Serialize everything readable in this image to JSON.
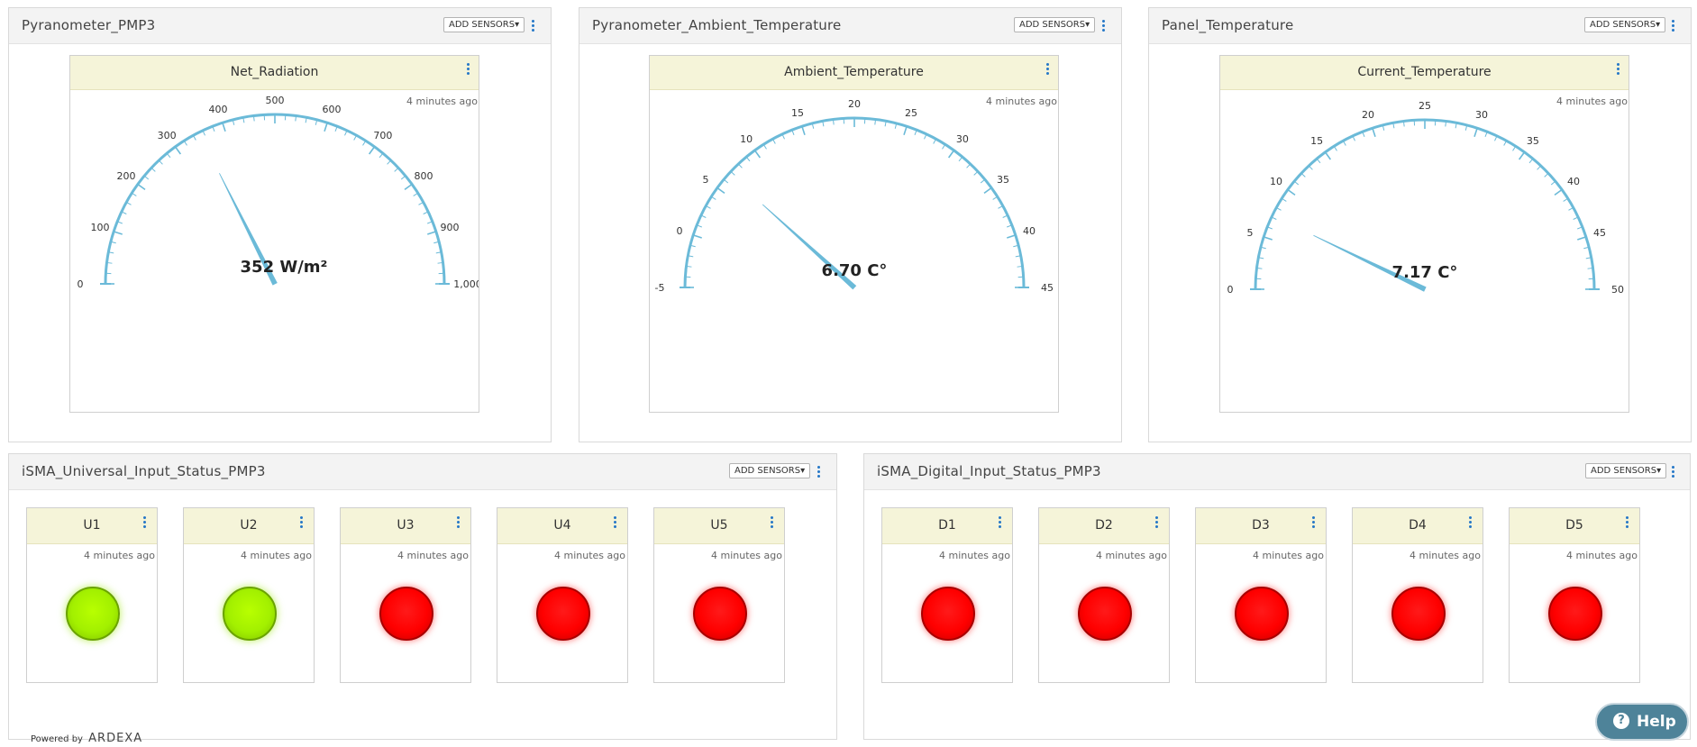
{
  "add_sensors_label": "ADD SENSORS",
  "gauge_panels": [
    {
      "title": "Pyranometer_PMP3",
      "card_title": "Net_Radiation",
      "updated": "4 minutes ago",
      "value_label": "352 W/m²",
      "gauge": {
        "min": 0,
        "max": 1000,
        "value": 352,
        "ticks": [
          "0",
          "100",
          "200",
          "300",
          "400",
          "500",
          "600",
          "700",
          "800",
          "900",
          "1,000"
        ]
      }
    },
    {
      "title": "Pyranometer_Ambient_Temperature",
      "card_title": "Ambient_Temperature",
      "updated": "4 minutes ago",
      "value_label": "6.70 C°",
      "gauge": {
        "min": -5,
        "max": 45,
        "value": 6.7,
        "ticks": [
          "-5",
          "0",
          "5",
          "10",
          "15",
          "20",
          "25",
          "30",
          "35",
          "40",
          "45"
        ]
      }
    },
    {
      "title": "Panel_Temperature",
      "card_title": "Current_Temperature",
      "updated": "4 minutes ago",
      "value_label": "7.17 C°",
      "gauge": {
        "min": 0,
        "max": 50,
        "value": 7.17,
        "ticks": [
          "0",
          "5",
          "10",
          "15",
          "20",
          "25",
          "30",
          "35",
          "40",
          "45",
          "50"
        ]
      }
    }
  ],
  "status_panels": [
    {
      "title": "iSMA_Universal_Input_Status_PMP3",
      "items": [
        {
          "label": "U1",
          "updated": "4 minutes ago",
          "state": "green"
        },
        {
          "label": "U2",
          "updated": "4 minutes ago",
          "state": "green"
        },
        {
          "label": "U3",
          "updated": "4 minutes ago",
          "state": "red"
        },
        {
          "label": "U4",
          "updated": "4 minutes ago",
          "state": "red"
        },
        {
          "label": "U5",
          "updated": "4 minutes ago",
          "state": "red"
        }
      ]
    },
    {
      "title": "iSMA_Digital_Input_Status_PMP3",
      "items": [
        {
          "label": "D1",
          "updated": "4 minutes ago",
          "state": "red"
        },
        {
          "label": "D2",
          "updated": "4 minutes ago",
          "state": "red"
        },
        {
          "label": "D3",
          "updated": "4 minutes ago",
          "state": "red"
        },
        {
          "label": "D4",
          "updated": "4 minutes ago",
          "state": "red"
        },
        {
          "label": "D5",
          "updated": "4 minutes ago",
          "state": "red"
        }
      ]
    }
  ],
  "footer": {
    "powered_by": "Powered by",
    "brand": "ARDEXA"
  },
  "help": {
    "label": "Help",
    "icon": "?"
  },
  "colors": {
    "gauge_arc": "#6bbad8",
    "card_header": "#f5f4d9",
    "accent_kebab": "#2577c7",
    "help_button": "#4e8399"
  }
}
